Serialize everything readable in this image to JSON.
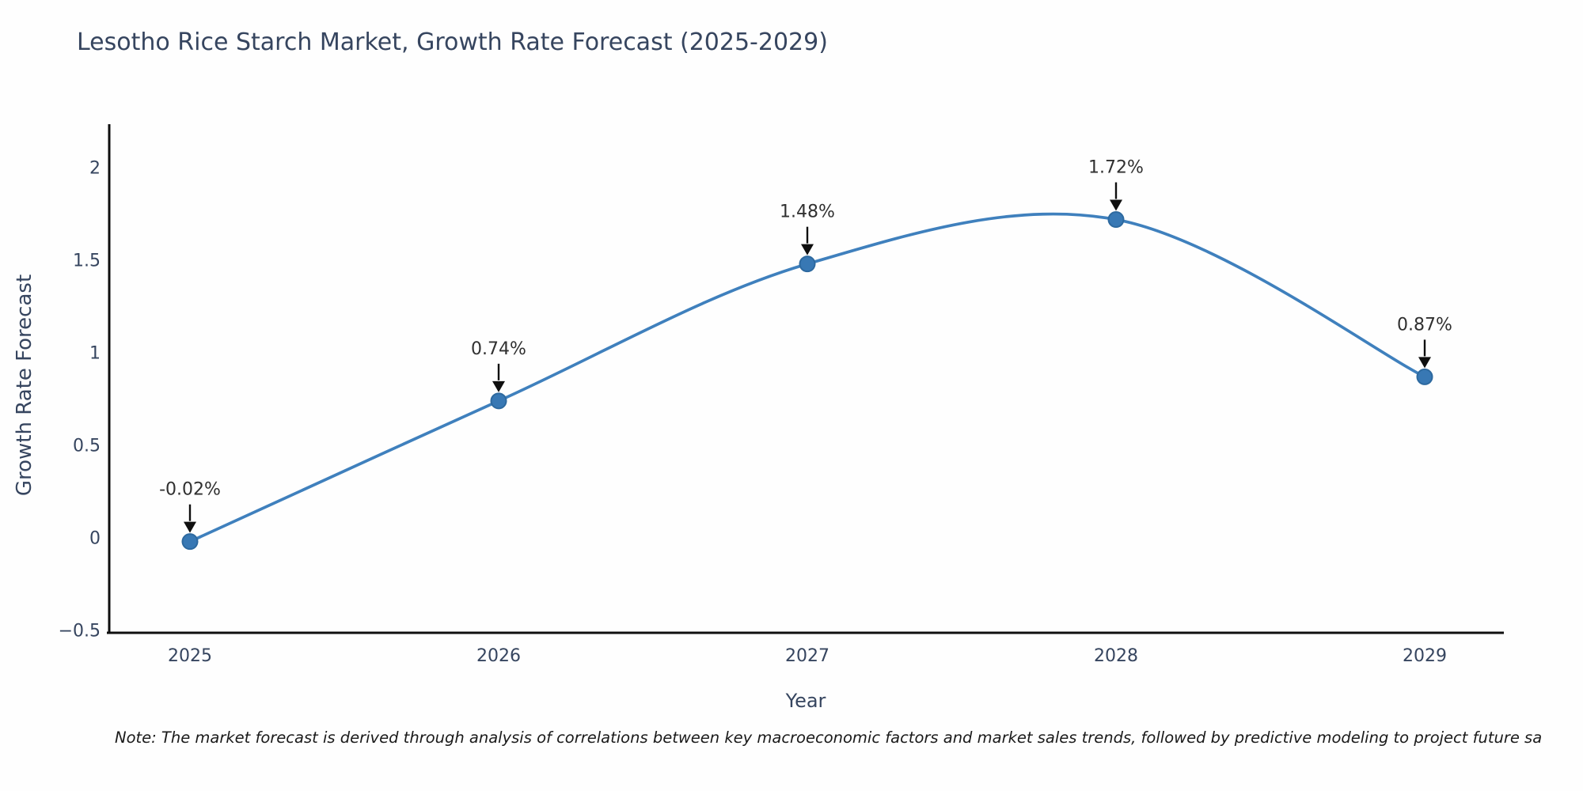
{
  "title": "Lesotho Rice Starch Market, Growth Rate Forecast (2025-2029)",
  "note": "Note: The market forecast is derived through analysis of correlations between key macroeconomic factors and market sales trends, followed by predictive modeling to project future sa",
  "chart_data": {
    "type": "line",
    "title": "Lesotho Rice Starch Market, Growth Rate Forecast (2025-2029)",
    "categories": [
      "2025",
      "2026",
      "2027",
      "2028",
      "2029"
    ],
    "values": [
      -0.02,
      0.74,
      1.48,
      1.72,
      0.87
    ],
    "point_labels": [
      "-0.02%",
      "0.74%",
      "1.48%",
      "1.72%",
      "0.87%"
    ],
    "xlabel": "Year",
    "ylabel": "Growth Rate Forecast",
    "ytick_values": [
      2,
      1.5,
      1,
      0.5,
      0,
      -0.5
    ],
    "ytick_labels": [
      "2",
      "1.5",
      "1",
      "0.5",
      "0",
      "−0.5"
    ],
    "ylim": [
      -0.5,
      2.25
    ],
    "grid": "off",
    "legend": "off",
    "smooth": true,
    "colors": {
      "line": "#3f80bd",
      "marker_fill": "#3878b4",
      "marker_edge": "#2d699f",
      "axis": "#0f0f0f",
      "arrow": "#0f0f0f",
      "annotation_text": "#303030",
      "tick_text": "#36455f",
      "title_text": "#36455f"
    }
  }
}
